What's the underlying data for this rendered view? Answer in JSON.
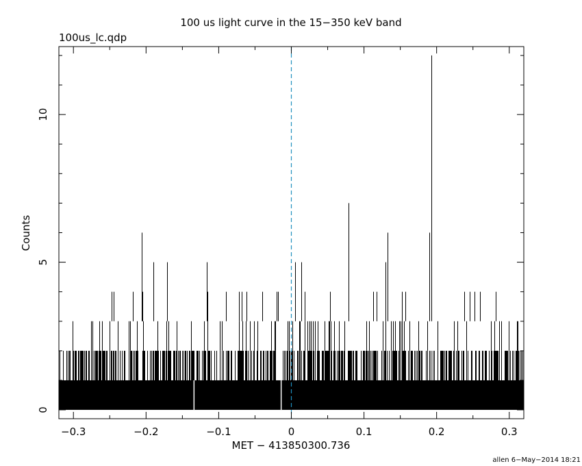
{
  "chart_data": {
    "type": "histogram",
    "title": "100 us light curve in the 15−350 keV band",
    "file_label": "100us_lc.qdp",
    "xlabel": "MET − 413850300.736",
    "ylabel": "Counts",
    "footer": "allen  6−May−2014 18:21",
    "xlim": [
      -0.32,
      0.32
    ],
    "ylim": [
      -0.3,
      12.3
    ],
    "x_ticks_major": [
      -0.3,
      -0.2,
      -0.1,
      0,
      0.1,
      0.2,
      0.3
    ],
    "x_tick_labels": [
      "−0.3",
      "−0.2",
      "−0.1",
      "0",
      "0.1",
      "0.2",
      "0.3"
    ],
    "y_ticks_major": [
      0,
      5,
      10
    ],
    "y_tick_labels": [
      "0",
      "5",
      "10"
    ],
    "bin_width": 0.0001,
    "baseline_counts": 1,
    "reference_line": {
      "x": 0,
      "color": "#1f8fbf",
      "style": "dashed"
    },
    "spikes": [
      {
        "x": 0.193,
        "y": 12
      },
      {
        "x": 0.079,
        "y": 7
      },
      {
        "x": -0.206,
        "y": 6
      },
      {
        "x": 0.132,
        "y": 6
      },
      {
        "x": 0.19,
        "y": 6
      },
      {
        "x": -0.19,
        "y": 5
      },
      {
        "x": -0.171,
        "y": 5
      },
      {
        "x": -0.116,
        "y": 5
      },
      {
        "x": 0.005,
        "y": 5
      },
      {
        "x": 0.014,
        "y": 5
      },
      {
        "x": 0.13,
        "y": 5
      },
      {
        "x": -0.247,
        "y": 4
      },
      {
        "x": -0.245,
        "y": 4
      },
      {
        "x": -0.218,
        "y": 4
      },
      {
        "x": -0.205,
        "y": 4
      },
      {
        "x": -0.115,
        "y": 4
      },
      {
        "x": -0.09,
        "y": 4
      },
      {
        "x": -0.072,
        "y": 4
      },
      {
        "x": -0.068,
        "y": 4
      },
      {
        "x": -0.062,
        "y": 4
      },
      {
        "x": -0.04,
        "y": 4
      },
      {
        "x": -0.02,
        "y": 4
      },
      {
        "x": -0.018,
        "y": 4
      },
      {
        "x": 0.018,
        "y": 4
      },
      {
        "x": 0.053,
        "y": 4
      },
      {
        "x": 0.113,
        "y": 4
      },
      {
        "x": 0.117,
        "y": 4
      },
      {
        "x": 0.152,
        "y": 4
      },
      {
        "x": 0.157,
        "y": 4
      },
      {
        "x": 0.238,
        "y": 4
      },
      {
        "x": 0.246,
        "y": 4
      },
      {
        "x": 0.252,
        "y": 4
      },
      {
        "x": 0.26,
        "y": 4
      },
      {
        "x": 0.281,
        "y": 4
      }
    ],
    "zero_bins": [
      -0.134,
      -0.014
    ]
  }
}
